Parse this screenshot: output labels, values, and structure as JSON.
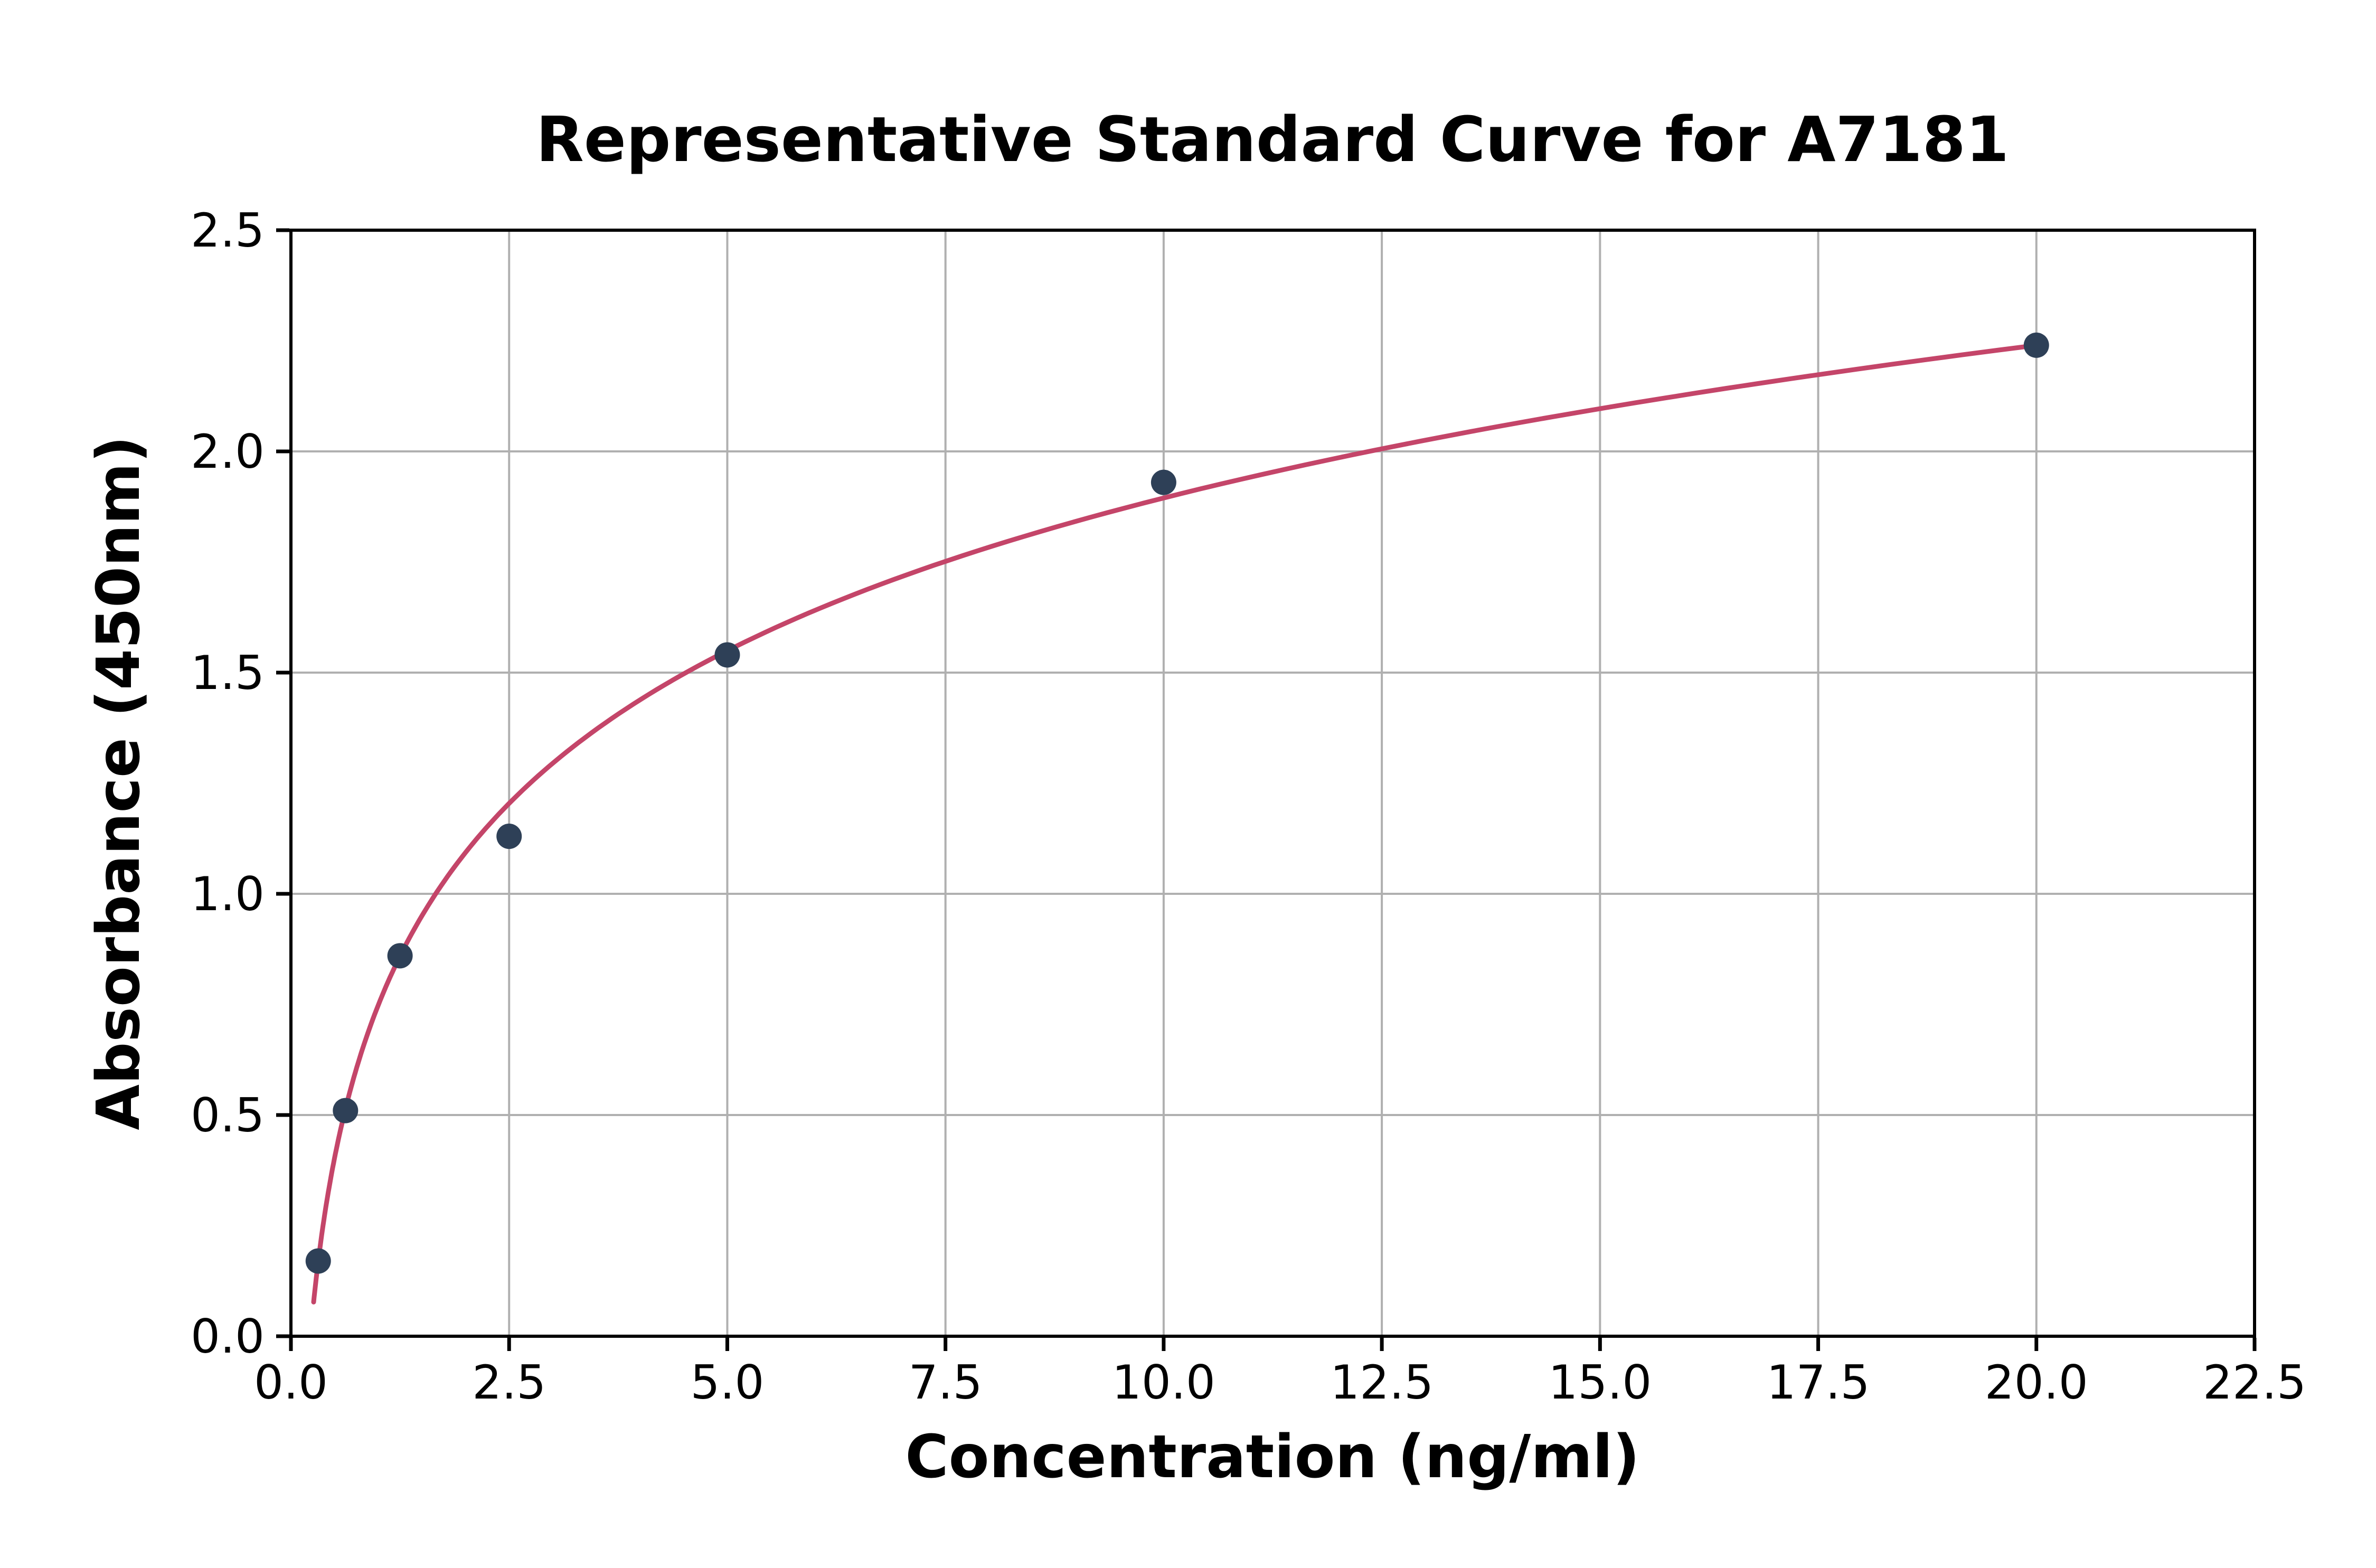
{
  "chart_data": {
    "type": "scatter",
    "title": "Representative Standard Curve for A7181",
    "xlabel": "Concentration (ng/ml)",
    "ylabel": "Absorbance (450nm)",
    "xlim": [
      0,
      22.5
    ],
    "ylim": [
      0,
      2.5
    ],
    "xticks": [
      0,
      2.5,
      5,
      7.5,
      10,
      12.5,
      15,
      17.5,
      20,
      22.5
    ],
    "yticks": [
      0,
      0.5,
      1,
      1.5,
      2,
      2.5
    ],
    "xtick_labels": [
      "0.0",
      "2.5",
      "5.0",
      "7.5",
      "10.0",
      "12.5",
      "15.0",
      "17.5",
      "20.0",
      "22.5"
    ],
    "ytick_labels": [
      "0.0",
      "0.5",
      "1.0",
      "1.5",
      "2.0",
      "2.5"
    ],
    "grid": true,
    "legend": "none",
    "points": [
      {
        "x": 0.313,
        "y": 0.17
      },
      {
        "x": 0.625,
        "y": 0.51
      },
      {
        "x": 1.25,
        "y": 0.86
      },
      {
        "x": 2.5,
        "y": 1.13
      },
      {
        "x": 5.0,
        "y": 1.54
      },
      {
        "x": 10.0,
        "y": 1.93
      },
      {
        "x": 20.0,
        "y": 2.24
      }
    ],
    "fit_curve": {
      "model": "logarithmic",
      "equation": "y = a + b * ln(x)",
      "a": 0.748,
      "b": 0.498,
      "x_start": 0.26,
      "x_end": 20.0
    },
    "colors": {
      "curve": "#c44569",
      "marker": "#2e4057",
      "grid": "#b0b0b0",
      "axis": "#000000",
      "background": "#ffffff",
      "text": "#000000"
    }
  }
}
